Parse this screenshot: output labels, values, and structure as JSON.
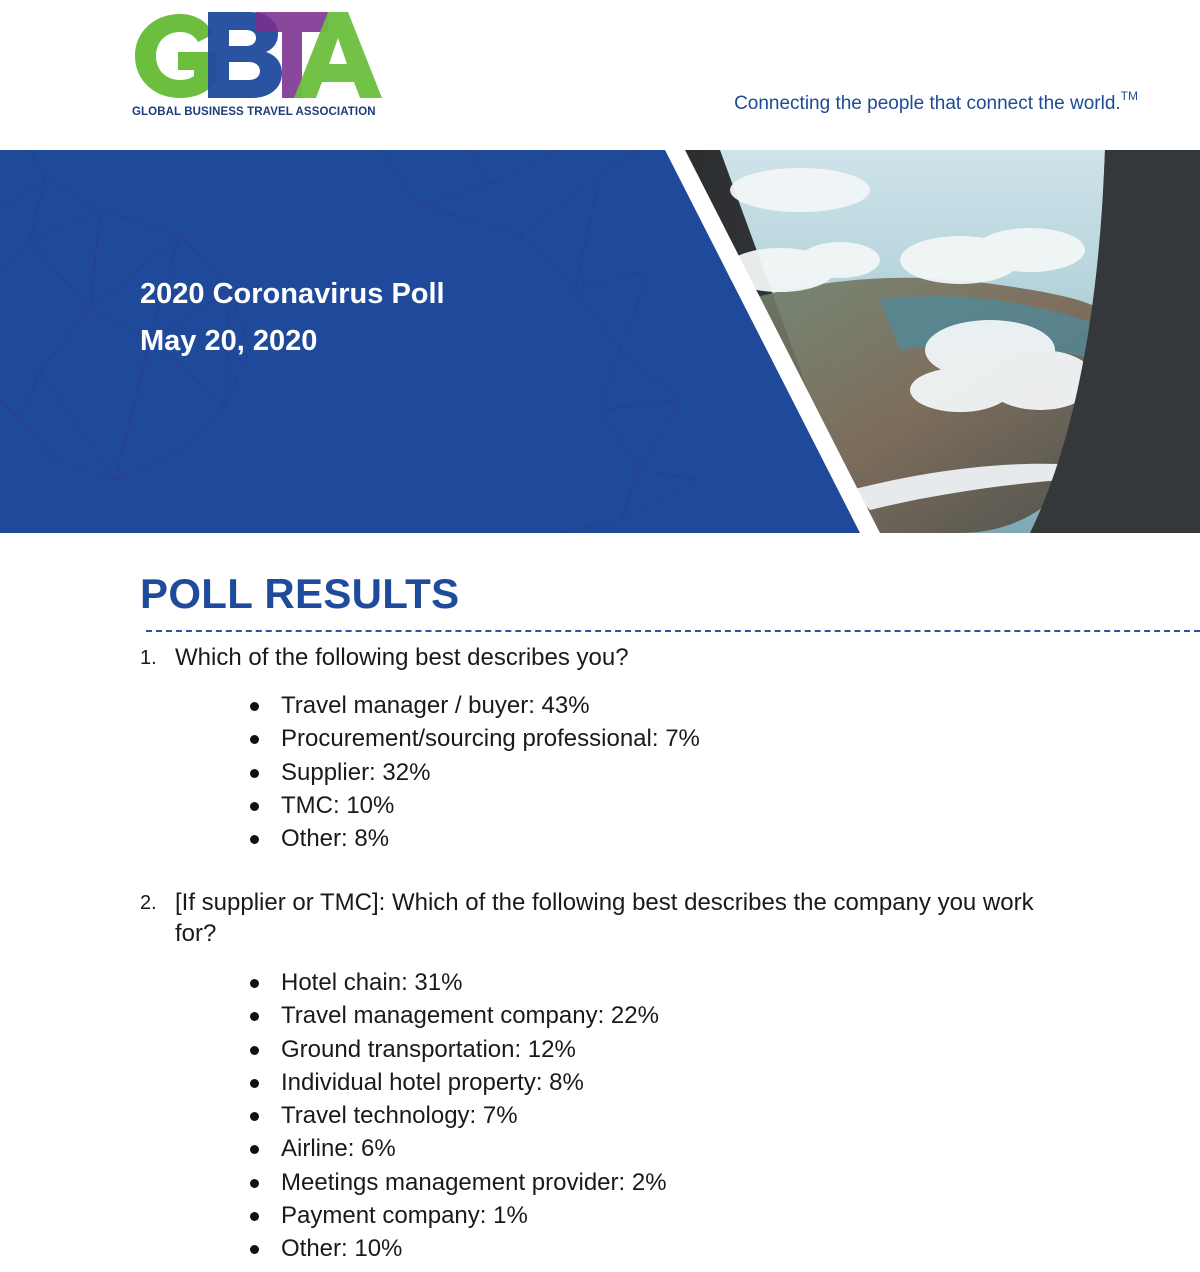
{
  "header": {
    "logo_text": "GBTA",
    "logo_subtitle": "GLOBAL BUSINESS TRAVEL ASSOCIATION",
    "tagline": "Connecting the people that connect the world.",
    "tagline_mark": "TM"
  },
  "banner": {
    "title": "2020 Coronavirus Poll",
    "date": "May 20, 2020",
    "colors": {
      "background": "#1f4a9c",
      "network_lines": "#2d3f8a"
    },
    "image": "airplane-window-clouds-photo"
  },
  "section": {
    "title": "POLL RESULTS"
  },
  "questions": [
    {
      "number": "1.",
      "text": "Which of the following best describes you?",
      "answers": [
        "Travel manager / buyer: 43%",
        "Procurement/sourcing professional: 7%",
        "Supplier: 32%",
        "TMC: 10%",
        "Other: 8%"
      ]
    },
    {
      "number": "2.",
      "text": "[If supplier or TMC]: Which of the following best describes the company you work for?",
      "answers": [
        "Hotel chain: 31%",
        "Travel management company: 22%",
        "Ground transportation: 12%",
        "Individual hotel property: 8%",
        "Travel technology: 7%",
        "Airline: 6%",
        "Meetings management provider: 2%",
        "Payment company: 1%",
        "Other: 10%"
      ]
    }
  ],
  "brand_colors": {
    "logo_green": "#6cbf3e",
    "logo_blue": "#1f4b9c",
    "logo_purple": "#7a2f8f",
    "heading_blue": "#1f4b9c"
  }
}
